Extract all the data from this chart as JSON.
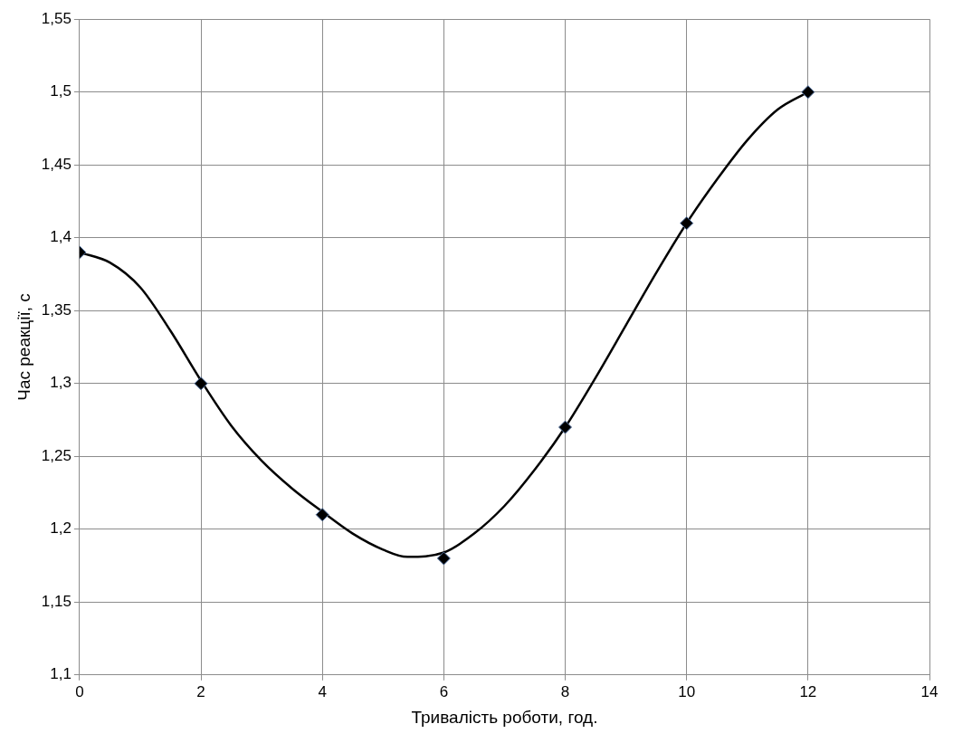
{
  "chart_data": {
    "type": "scatter",
    "xlabel": "Тривалість роботи, год.",
    "ylabel": "Час реакції, с",
    "xlim": [
      0,
      14
    ],
    "xticks": [
      0,
      2,
      4,
      6,
      8,
      10,
      12,
      14
    ],
    "ylim": [
      1.1,
      1.55
    ],
    "yticks": [
      {
        "value": 1.1,
        "label": "1,1"
      },
      {
        "value": 1.15,
        "label": "1,15"
      },
      {
        "value": 1.2,
        "label": "1,2"
      },
      {
        "value": 1.25,
        "label": "1,25"
      },
      {
        "value": 1.3,
        "label": "1,3"
      },
      {
        "value": 1.35,
        "label": "1,35"
      },
      {
        "value": 1.4,
        "label": "1,4"
      },
      {
        "value": 1.45,
        "label": "1,45"
      },
      {
        "value": 1.5,
        "label": "1,5"
      },
      {
        "value": 1.55,
        "label": "1,55"
      }
    ],
    "grid": true,
    "legend": false,
    "series": [
      {
        "type": "line",
        "color": "#000000",
        "marker": "none",
        "line_style": "solid",
        "x": [
          0,
          0.5,
          1,
          1.5,
          2,
          2.5,
          3,
          3.5,
          4,
          4.5,
          5,
          5.4,
          6,
          6.5,
          7,
          7.5,
          8,
          8.5,
          9,
          9.5,
          10,
          10.5,
          11,
          11.5,
          12
        ],
        "values": [
          1.39,
          1.383,
          1.366,
          1.336,
          1.302,
          1.271,
          1.247,
          1.228,
          1.212,
          1.197,
          1.186,
          1.181,
          1.184,
          1.197,
          1.216,
          1.241,
          1.27,
          1.304,
          1.34,
          1.376,
          1.41,
          1.44,
          1.467,
          1.488,
          1.5
        ]
      },
      {
        "type": "scatter",
        "color": "#000000",
        "marker": "diamond",
        "x": [
          0,
          2,
          4,
          6,
          8,
          10,
          12
        ],
        "values": [
          1.39,
          1.3,
          1.21,
          1.18,
          1.27,
          1.41,
          1.5
        ]
      }
    ]
  }
}
